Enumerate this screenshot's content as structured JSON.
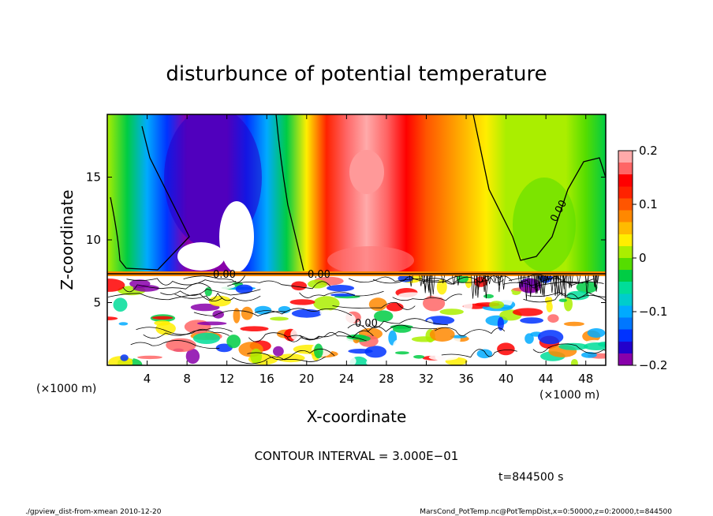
{
  "chart_data": {
    "type": "heatmap",
    "title": "disturbunce of potential temperature",
    "xlabel": "X-coordinate",
    "ylabel": "Z-coordinate",
    "x_unit": "(×1000 m)",
    "y_unit": "(×1000 m)",
    "xlim": [
      0,
      50
    ],
    "ylim": [
      0,
      20
    ],
    "x_ticks": [
      4,
      8,
      12,
      16,
      20,
      24,
      28,
      32,
      36,
      40,
      44,
      48
    ],
    "y_ticks": [
      5,
      10,
      15
    ],
    "colorbar": {
      "range": [
        -0.2,
        0.2
      ],
      "ticks": [
        0.2,
        0.1,
        0,
        -0.1,
        -0.2
      ],
      "tick_labels": [
        "0.2",
        "0.1",
        "0",
        "−0.1",
        "−0.2"
      ],
      "colors": [
        "#8800aa",
        "#2200cc",
        "#0033ff",
        "#0077ff",
        "#00aaff",
        "#00cccc",
        "#00dd99",
        "#00cc44",
        "#55dd00",
        "#aaee00",
        "#ffee00",
        "#ffbb00",
        "#ff8800",
        "#ff5500",
        "#ff2200",
        "#ff0000",
        "#ff6666",
        "#ffaaaa"
      ]
    },
    "contour_labels": [
      "0.00",
      "0.00",
      "0.00",
      "0.00"
    ],
    "contour_interval": "CONTOUR INTERVAL = 3.000E−01",
    "time_label": "t=844500 s",
    "footer_left": "./gpview_dist-from-xmean  2010-12-20",
    "footer_right": "MarsCond_PotTemp.nc@PotTempDist,x=0:50000,z=0:20000,t=844500",
    "boundary_z": 7.3,
    "upper_field": [
      {
        "x": 0,
        "v": 0.0
      },
      {
        "x": 2,
        "v": -0.04
      },
      {
        "x": 4,
        "v": -0.09
      },
      {
        "x": 6,
        "v": -0.14
      },
      {
        "x": 8,
        "v": -0.18
      },
      {
        "x": 10,
        "v": -0.2
      },
      {
        "x": 12,
        "v": -0.19
      },
      {
        "x": 14,
        "v": -0.15
      },
      {
        "x": 16,
        "v": -0.09
      },
      {
        "x": 18,
        "v": -0.03
      },
      {
        "x": 20,
        "v": 0.04
      },
      {
        "x": 22,
        "v": 0.13
      },
      {
        "x": 24,
        "v": 0.17
      },
      {
        "x": 26,
        "v": 0.19
      },
      {
        "x": 28,
        "v": 0.17
      },
      {
        "x": 30,
        "v": 0.14
      },
      {
        "x": 32,
        "v": 0.11
      },
      {
        "x": 34,
        "v": 0.08
      },
      {
        "x": 36,
        "v": 0.05
      },
      {
        "x": 38,
        "v": 0.03
      },
      {
        "x": 40,
        "v": 0.01
      },
      {
        "x": 42,
        "v": 0.0
      },
      {
        "x": 44,
        "v": 0.01
      },
      {
        "x": 46,
        "v": 0.0
      },
      {
        "x": 48,
        "v": -0.02
      },
      {
        "x": 50,
        "v": -0.03
      }
    ]
  }
}
